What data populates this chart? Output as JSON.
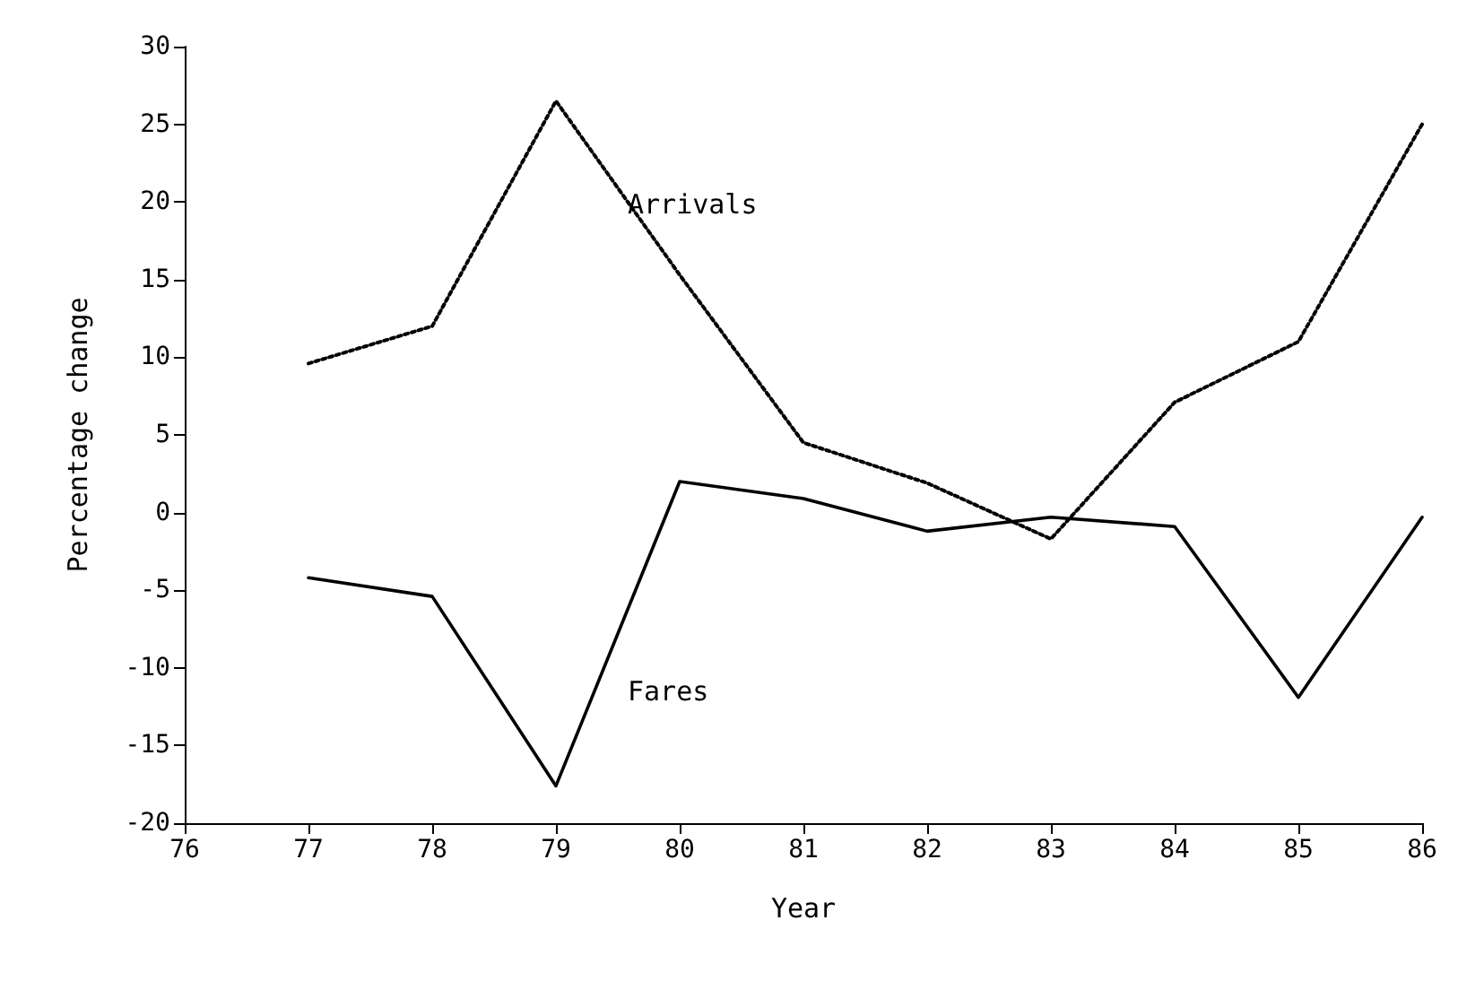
{
  "chart_data": {
    "type": "line",
    "xlabel": "Year",
    "ylabel": "Percentage change",
    "x": [
      77,
      78,
      79,
      80,
      81,
      82,
      83,
      84,
      85,
      86
    ],
    "series": [
      {
        "name": "Arrivals",
        "color": "#000000",
        "line_style": "dotted",
        "values": [
          9.6,
          12,
          26.5,
          15.3,
          4.5,
          1.9,
          -1.7,
          7.1,
          11,
          25
        ]
      },
      {
        "name": "Fares",
        "color": "#000000",
        "line_style": "solid",
        "values": [
          -4.2,
          -5.4,
          -17.6,
          2,
          0.9,
          -1.2,
          -0.3,
          -0.9,
          -11.9,
          -0.3
        ]
      }
    ],
    "xlim": [
      76,
      86
    ],
    "xticks": [
      76,
      77,
      78,
      79,
      80,
      81,
      82,
      83,
      84,
      85,
      86
    ],
    "ylim": [
      -20,
      30
    ],
    "yticks": [
      -20,
      -15,
      -10,
      -5,
      0,
      5,
      10,
      15,
      20,
      25,
      30
    ],
    "grid": false,
    "marker": "none"
  }
}
